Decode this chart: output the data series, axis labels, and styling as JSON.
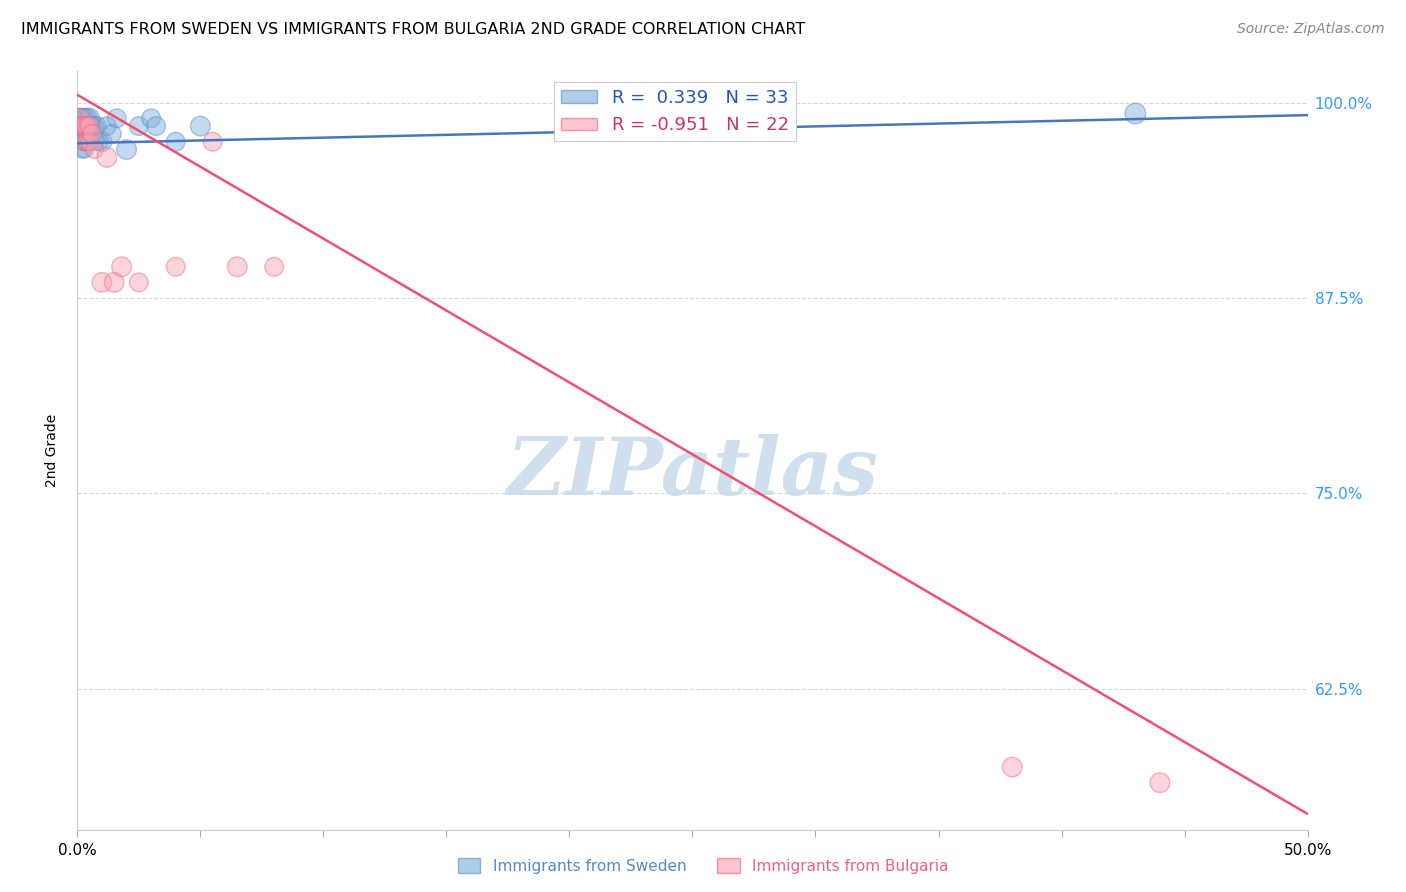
{
  "title": "IMMIGRANTS FROM SWEDEN VS IMMIGRANTS FROM BULGARIA 2ND GRADE CORRELATION CHART",
  "source": "Source: ZipAtlas.com",
  "ylabel": "2nd Grade",
  "xlim": [
    0.0,
    0.5
  ],
  "ylim": [
    0.535,
    1.02
  ],
  "yticks": [
    0.625,
    0.75,
    0.875,
    1.0
  ],
  "xtick_positions": [
    0.0,
    0.05,
    0.1,
    0.15,
    0.2,
    0.25,
    0.3,
    0.35,
    0.4,
    0.45,
    0.5
  ],
  "grid_color": "#d8d8d8",
  "background_color": "#ffffff",
  "watermark_text": "ZIPatlas",
  "watermark_color": "#c8daea",
  "legend_label1": "R =  0.339   N = 33",
  "legend_label2": "R = -0.951   N = 22",
  "sweden_color": "#7aacdb",
  "bulgaria_color": "#f9a0b0",
  "sweden_edge_color": "#5588cc",
  "bulgaria_edge_color": "#f06080",
  "sweden_line_color": "#4477bb",
  "bulgaria_line_color": "#f05070",
  "sweden_x": [
    0.001,
    0.001,
    0.001,
    0.002,
    0.002,
    0.002,
    0.002,
    0.003,
    0.003,
    0.003,
    0.003,
    0.004,
    0.004,
    0.004,
    0.005,
    0.005,
    0.006,
    0.007,
    0.007,
    0.008,
    0.009,
    0.01,
    0.012,
    0.014,
    0.016,
    0.02,
    0.025,
    0.03,
    0.032,
    0.04,
    0.05,
    0.28,
    0.43
  ],
  "sweden_y": [
    0.99,
    0.985,
    0.98,
    0.99,
    0.98,
    0.975,
    0.97,
    0.99,
    0.985,
    0.975,
    0.97,
    0.99,
    0.98,
    0.975,
    0.99,
    0.98,
    0.985,
    0.985,
    0.975,
    0.985,
    0.975,
    0.975,
    0.985,
    0.98,
    0.99,
    0.97,
    0.985,
    0.99,
    0.985,
    0.975,
    0.985,
    0.99,
    0.993
  ],
  "sweden_sizes": [
    200,
    180,
    160,
    200,
    180,
    160,
    150,
    200,
    180,
    160,
    150,
    200,
    180,
    160,
    200,
    180,
    180,
    180,
    160,
    180,
    160,
    200,
    180,
    180,
    180,
    200,
    180,
    180,
    180,
    180,
    200,
    200,
    220
  ],
  "bulgaria_x": [
    0.001,
    0.001,
    0.002,
    0.003,
    0.003,
    0.004,
    0.004,
    0.005,
    0.005,
    0.006,
    0.007,
    0.01,
    0.012,
    0.015,
    0.018,
    0.025,
    0.04,
    0.055,
    0.065,
    0.08,
    0.38,
    0.44
  ],
  "bulgaria_y": [
    0.99,
    0.985,
    0.985,
    0.985,
    0.975,
    0.985,
    0.975,
    0.985,
    0.975,
    0.98,
    0.97,
    0.885,
    0.965,
    0.885,
    0.895,
    0.885,
    0.895,
    0.975,
    0.895,
    0.895,
    0.575,
    0.565
  ],
  "bulgaria_sizes": [
    200,
    180,
    180,
    180,
    160,
    180,
    160,
    180,
    160,
    180,
    160,
    200,
    200,
    200,
    200,
    180,
    180,
    180,
    200,
    180,
    200,
    200
  ],
  "sweden_trend_x": [
    0.0,
    0.5
  ],
  "sweden_trend_y": [
    0.974,
    0.992
  ],
  "bulgaria_trend_x": [
    0.0,
    0.5
  ],
  "bulgaria_trend_y": [
    1.005,
    0.545
  ],
  "bottom_legend_sweden": "Immigrants from Sweden",
  "bottom_legend_bulgaria": "Immigrants from Bulgaria"
}
